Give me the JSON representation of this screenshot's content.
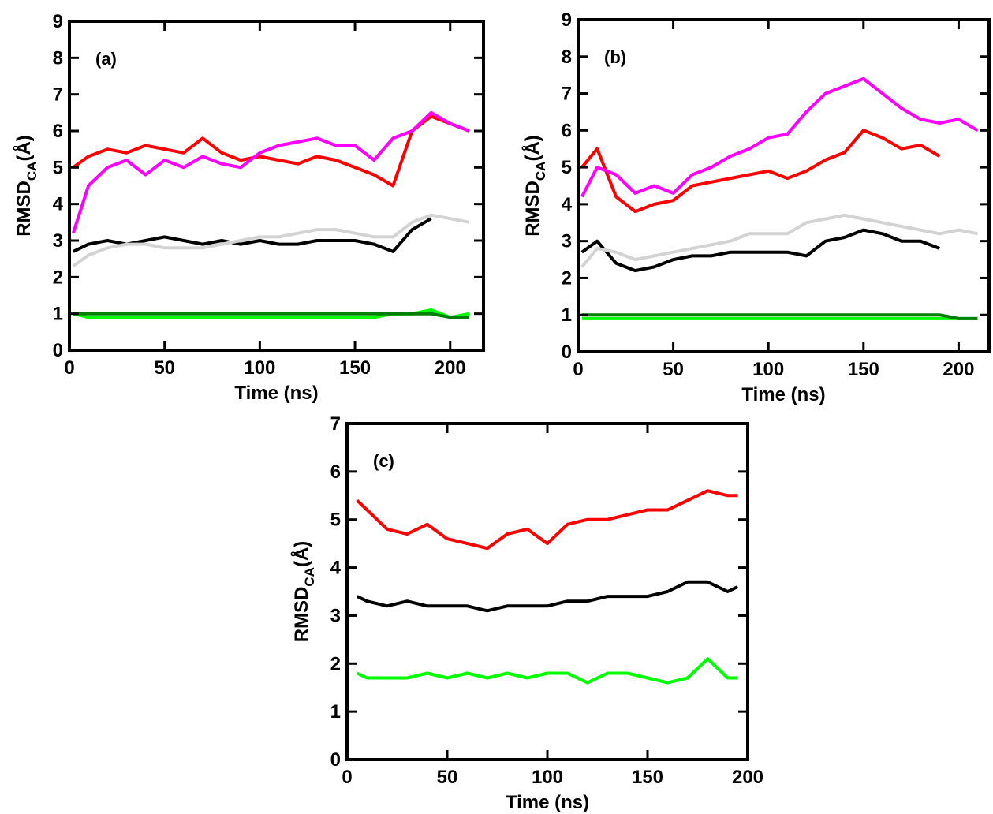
{
  "chart_data": [
    {
      "type": "line",
      "annotation": "(a)",
      "x_label": "Time (ns)",
      "y_label": "RMSD",
      "y_label_sub": "CA",
      "y_label_unit": "(Å)",
      "xlim": [
        0,
        217.5
      ],
      "ylim": [
        0,
        9
      ],
      "xticks": [
        0,
        50,
        100,
        150,
        200
      ],
      "yticks": [
        0,
        1,
        2,
        3,
        4,
        5,
        6,
        7,
        8,
        9
      ],
      "x": [
        2,
        10,
        20,
        30,
        40,
        50,
        60,
        70,
        80,
        90,
        100,
        110,
        120,
        130,
        140,
        150,
        160,
        170,
        180,
        190,
        200,
        210
      ],
      "series": [
        {
          "color": "#ff0000",
          "values": [
            5.0,
            5.3,
            5.5,
            5.4,
            5.6,
            5.5,
            5.4,
            5.8,
            5.4,
            5.2,
            5.3,
            5.2,
            5.1,
            5.3,
            5.2,
            5.0,
            4.8,
            4.5,
            6.0,
            6.4,
            6.2,
            6.0
          ]
        },
        {
          "color": "#ff00ff",
          "values": [
            3.2,
            4.5,
            5.0,
            5.2,
            4.8,
            5.2,
            5.0,
            5.3,
            5.1,
            5.0,
            5.4,
            5.6,
            5.7,
            5.8,
            5.6,
            5.6,
            5.2,
            5.8,
            6.0,
            6.5,
            6.2,
            6.0
          ]
        },
        {
          "color": "#000000",
          "values": [
            2.7,
            2.9,
            3.0,
            2.9,
            3.0,
            3.1,
            3.0,
            2.9,
            3.0,
            2.9,
            3.0,
            2.9,
            2.9,
            3.0,
            3.0,
            3.0,
            2.9,
            2.7,
            3.3,
            3.6,
            null,
            null
          ]
        },
        {
          "color": "#d3d3d3",
          "values": [
            2.3,
            2.6,
            2.8,
            2.9,
            2.9,
            2.8,
            2.8,
            2.8,
            2.9,
            3.0,
            3.1,
            3.1,
            3.2,
            3.3,
            3.3,
            3.2,
            3.1,
            3.1,
            3.5,
            3.7,
            3.6,
            3.5
          ]
        },
        {
          "color": "#00ff00",
          "values": [
            1.0,
            0.9,
            0.9,
            0.9,
            0.9,
            0.9,
            0.9,
            0.9,
            0.9,
            0.9,
            0.9,
            0.9,
            0.9,
            0.9,
            0.9,
            0.9,
            0.9,
            1.0,
            1.0,
            1.1,
            0.9,
            1.0
          ]
        },
        {
          "color": "#008000",
          "values": [
            1.0,
            1.0,
            1.0,
            1.0,
            1.0,
            1.0,
            1.0,
            1.0,
            1.0,
            1.0,
            1.0,
            1.0,
            1.0,
            1.0,
            1.0,
            1.0,
            1.0,
            1.0,
            1.0,
            1.0,
            0.9,
            0.9
          ]
        }
      ]
    },
    {
      "type": "line",
      "annotation": "(b)",
      "x_label": "Time (ns)",
      "y_label": "RMSD",
      "y_label_sub": "CA",
      "y_label_unit": "(Å)",
      "xlim": [
        0,
        216
      ],
      "ylim": [
        0,
        9
      ],
      "xticks": [
        0,
        50,
        100,
        150,
        200
      ],
      "yticks": [
        0,
        1,
        2,
        3,
        4,
        5,
        6,
        7,
        8,
        9
      ],
      "x": [
        2,
        10,
        20,
        30,
        40,
        50,
        60,
        70,
        80,
        90,
        100,
        110,
        120,
        130,
        140,
        150,
        160,
        170,
        180,
        190,
        200,
        210
      ],
      "series": [
        {
          "color": "#ff0000",
          "values": [
            5.0,
            5.5,
            4.2,
            3.8,
            4.0,
            4.1,
            4.5,
            4.6,
            4.7,
            4.8,
            4.9,
            4.7,
            4.9,
            5.2,
            5.4,
            6.0,
            5.8,
            5.5,
            5.6,
            5.3,
            null,
            null
          ]
        },
        {
          "color": "#ff00ff",
          "values": [
            4.2,
            5.0,
            4.8,
            4.3,
            4.5,
            4.3,
            4.8,
            5.0,
            5.3,
            5.5,
            5.8,
            5.9,
            6.5,
            7.0,
            7.2,
            7.4,
            7.0,
            6.6,
            6.3,
            6.2,
            6.3,
            6.0
          ]
        },
        {
          "color": "#000000",
          "values": [
            2.7,
            3.0,
            2.4,
            2.2,
            2.3,
            2.5,
            2.6,
            2.6,
            2.7,
            2.7,
            2.7,
            2.7,
            2.6,
            3.0,
            3.1,
            3.3,
            3.2,
            3.0,
            3.0,
            2.8,
            null,
            null
          ]
        },
        {
          "color": "#d3d3d3",
          "values": [
            2.3,
            2.8,
            2.7,
            2.5,
            2.6,
            2.7,
            2.8,
            2.9,
            3.0,
            3.2,
            3.2,
            3.2,
            3.5,
            3.6,
            3.7,
            3.6,
            3.5,
            3.4,
            3.3,
            3.2,
            3.3,
            3.2
          ]
        },
        {
          "color": "#00ff00",
          "values": [
            0.9,
            0.9,
            0.9,
            0.9,
            0.9,
            0.9,
            0.9,
            0.9,
            0.9,
            0.9,
            0.9,
            0.9,
            0.9,
            0.9,
            0.9,
            0.9,
            0.9,
            0.9,
            0.9,
            0.9,
            0.9,
            0.9
          ]
        },
        {
          "color": "#008000",
          "values": [
            1.0,
            1.0,
            1.0,
            1.0,
            1.0,
            1.0,
            1.0,
            1.0,
            1.0,
            1.0,
            1.0,
            1.0,
            1.0,
            1.0,
            1.0,
            1.0,
            1.0,
            1.0,
            1.0,
            1.0,
            0.9,
            0.9
          ]
        }
      ]
    },
    {
      "type": "line",
      "annotation": "(c)",
      "x_label": "Time (ns)",
      "y_label": "RMSD",
      "y_label_sub": "CA",
      "y_label_unit": "(Å)",
      "xlim": [
        0,
        200
      ],
      "ylim": [
        0,
        7
      ],
      "xticks": [
        0,
        50,
        100,
        150,
        200
      ],
      "yticks": [
        0,
        1,
        2,
        3,
        4,
        5,
        6,
        7
      ],
      "x": [
        5,
        10,
        20,
        30,
        40,
        50,
        60,
        70,
        80,
        90,
        100,
        110,
        120,
        130,
        140,
        150,
        160,
        170,
        180,
        190,
        195
      ],
      "series": [
        {
          "color": "#ff0000",
          "values": [
            5.4,
            5.2,
            4.8,
            4.7,
            4.9,
            4.6,
            4.5,
            4.4,
            4.7,
            4.8,
            4.5,
            4.9,
            5.0,
            5.0,
            5.1,
            5.2,
            5.2,
            5.4,
            5.6,
            5.5,
            5.5
          ]
        },
        {
          "color": "#000000",
          "values": [
            3.4,
            3.3,
            3.2,
            3.3,
            3.2,
            3.2,
            3.2,
            3.1,
            3.2,
            3.2,
            3.2,
            3.3,
            3.3,
            3.4,
            3.4,
            3.4,
            3.5,
            3.7,
            3.7,
            3.5,
            3.6
          ]
        },
        {
          "color": "#00ff00",
          "values": [
            1.8,
            1.7,
            1.7,
            1.7,
            1.8,
            1.7,
            1.8,
            1.7,
            1.8,
            1.7,
            1.8,
            1.8,
            1.6,
            1.8,
            1.8,
            1.7,
            1.6,
            1.7,
            2.1,
            1.7,
            1.7
          ]
        }
      ]
    }
  ]
}
